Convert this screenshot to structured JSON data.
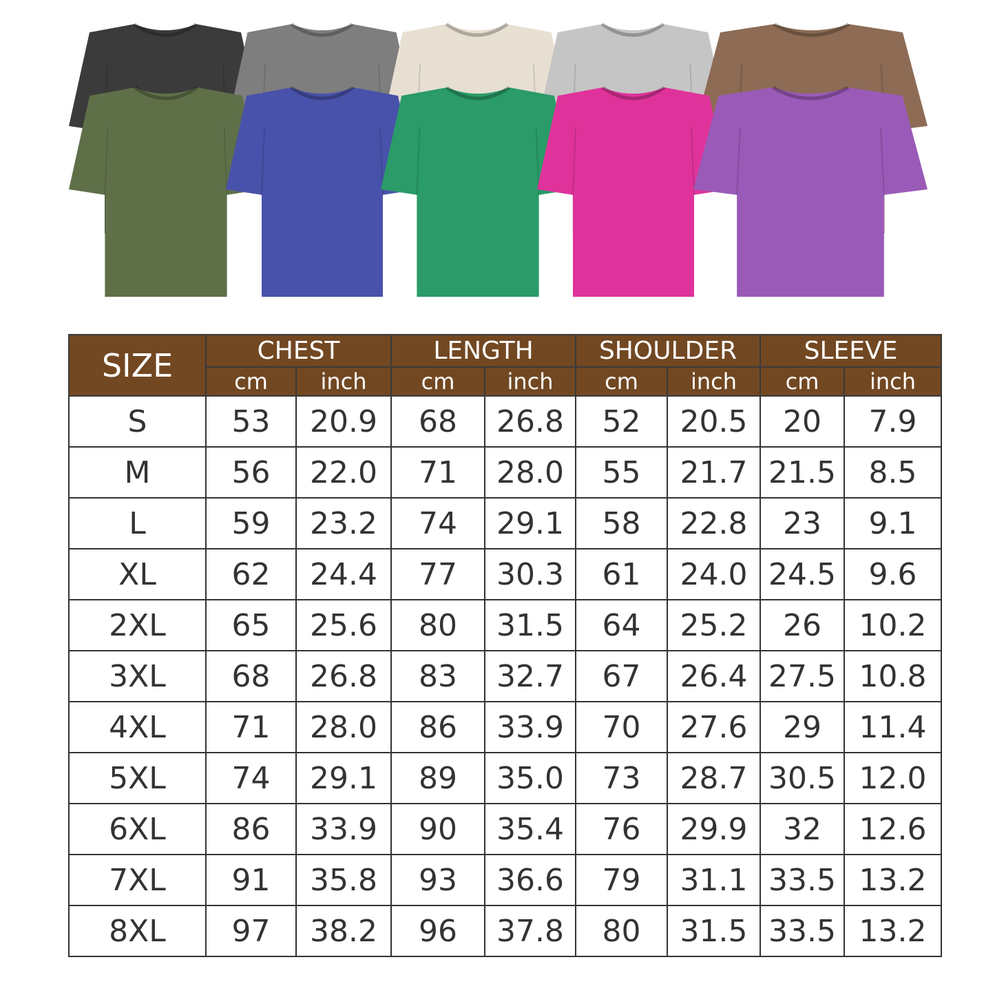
{
  "shirts": {
    "back_row": [
      {
        "color": "Black",
        "hex": "#3b3b3b"
      },
      {
        "color": "Grey",
        "hex": "#7e7e7e"
      },
      {
        "color": "Cream",
        "hex": "#e7dfd2"
      },
      {
        "color": "Light grey",
        "hex": "#c5c5c5"
      },
      {
        "color": "Brown",
        "hex": "#8d6b55"
      }
    ],
    "front_row": [
      {
        "color": "Olive",
        "hex": "#5f7049"
      },
      {
        "color": "Blue",
        "hex": "#4852aa"
      },
      {
        "color": "Green",
        "hex": "#2a9b69"
      },
      {
        "color": "Pink",
        "hex": "#df339b"
      },
      {
        "color": "Purple",
        "hex": "#9a5bb8"
      }
    ]
  },
  "table": {
    "header_color": "#724822",
    "size_label": "SIZE",
    "groups": [
      "CHEST",
      "LENGTH",
      "SHOULDER",
      "SLEEVE"
    ],
    "units": [
      "cm",
      "inch"
    ],
    "rows": [
      [
        "S",
        "53",
        "20.9",
        "68",
        "26.8",
        "52",
        "20.5",
        "20",
        "7.9"
      ],
      [
        "M",
        "56",
        "22.0",
        "71",
        "28.0",
        "55",
        "21.7",
        "21.5",
        "8.5"
      ],
      [
        "L",
        "59",
        "23.2",
        "74",
        "29.1",
        "58",
        "22.8",
        "23",
        "9.1"
      ],
      [
        "XL",
        "62",
        "24.4",
        "77",
        "30.3",
        "61",
        "24.0",
        "24.5",
        "9.6"
      ],
      [
        "2XL",
        "65",
        "25.6",
        "80",
        "31.5",
        "64",
        "25.2",
        "26",
        "10.2"
      ],
      [
        "3XL",
        "68",
        "26.8",
        "83",
        "32.7",
        "67",
        "26.4",
        "27.5",
        "10.8"
      ],
      [
        "4XL",
        "71",
        "28.0",
        "86",
        "33.9",
        "70",
        "27.6",
        "29",
        "11.4"
      ],
      [
        "5XL",
        "74",
        "29.1",
        "89",
        "35.0",
        "73",
        "28.7",
        "30.5",
        "12.0"
      ],
      [
        "6XL",
        "86",
        "33.9",
        "90",
        "35.4",
        "76",
        "29.9",
        "32",
        "12.6"
      ],
      [
        "7XL",
        "91",
        "35.8",
        "93",
        "36.6",
        "79",
        "31.1",
        "33.5",
        "13.2"
      ],
      [
        "8XL",
        "97",
        "38.2",
        "96",
        "37.8",
        "80",
        "31.5",
        "33.5",
        "13.2"
      ]
    ]
  }
}
